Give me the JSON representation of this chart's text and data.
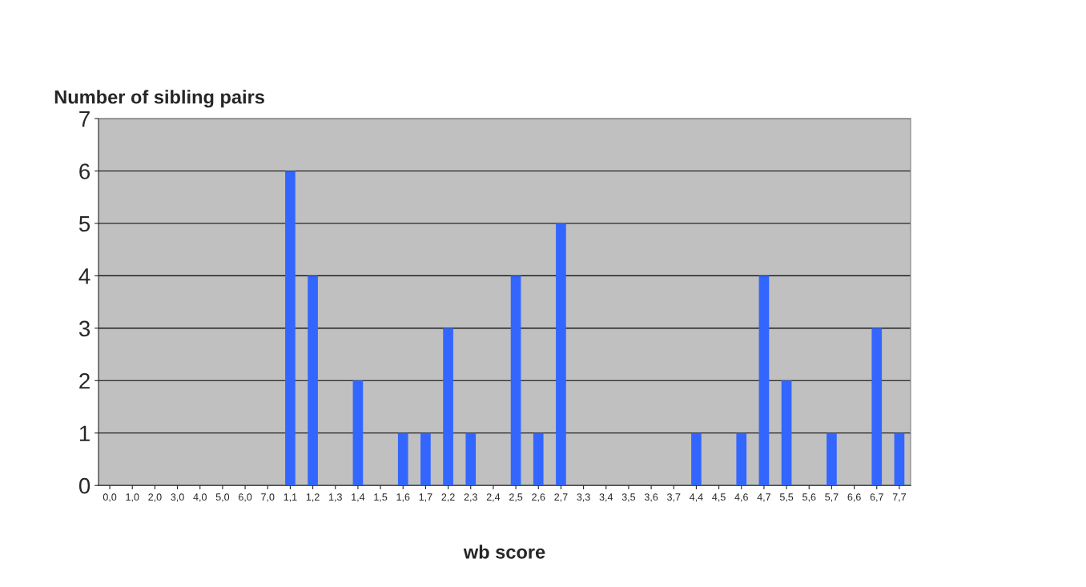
{
  "chart_data": {
    "type": "bar",
    "ylabel": "Number of sibling pairs",
    "xlabel": "wb score",
    "categories": [
      "0,0",
      "1,0",
      "2,0",
      "3,0",
      "4,0",
      "5,0",
      "6,0",
      "7,0",
      "1,1",
      "1,2",
      "1,3",
      "1,4",
      "1,5",
      "1,6",
      "1,7",
      "2,2",
      "2,3",
      "2,4",
      "2,5",
      "2,6",
      "2,7",
      "3,3",
      "3,4",
      "3,5",
      "3,6",
      "3,7",
      "4,4",
      "4,5",
      "4,6",
      "4,7",
      "5,5",
      "5,6",
      "5,7",
      "6,6",
      "6,7",
      "7,7"
    ],
    "values": [
      0,
      0,
      0,
      0,
      0,
      0,
      0,
      0,
      6,
      4,
      0,
      2,
      0,
      1,
      1,
      3,
      1,
      0,
      4,
      1,
      5,
      0,
      0,
      0,
      0,
      0,
      1,
      0,
      1,
      4,
      2,
      0,
      1,
      0,
      3,
      1
    ],
    "color": "#3366ff",
    "ylim": [
      0,
      7
    ],
    "yticks": [
      0,
      1,
      2,
      3,
      4,
      5,
      6,
      7
    ],
    "grid": "y",
    "legend": false
  }
}
